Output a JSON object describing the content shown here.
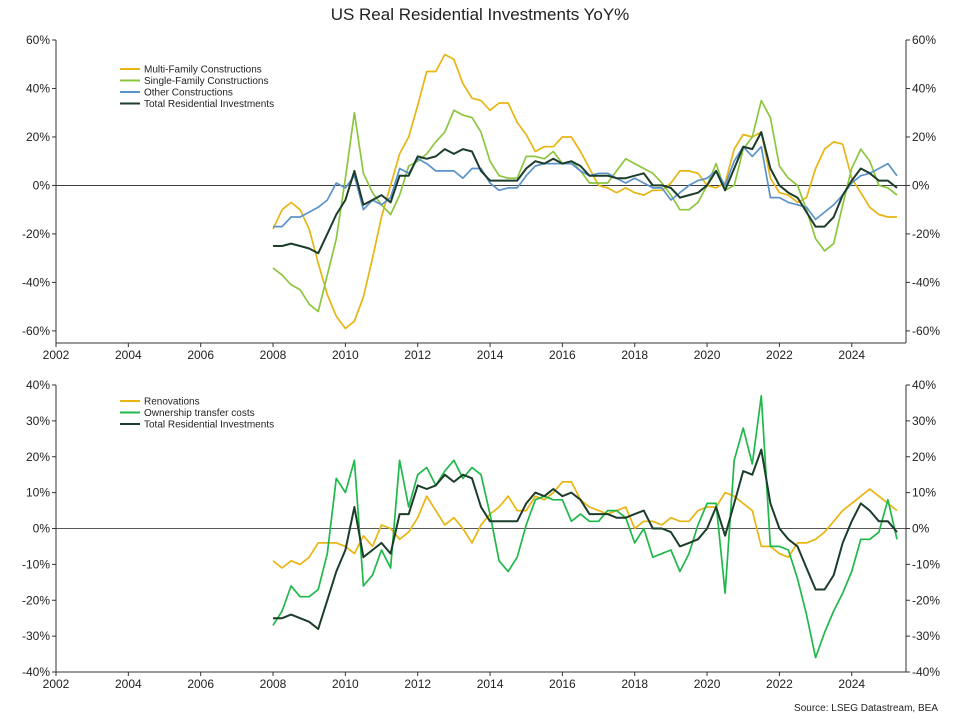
{
  "title": "US Real Residential Investments YoY%",
  "source": "Source: LSEG Datastream, BEA",
  "chart_data": [
    {
      "type": "line",
      "x_ticks": [
        "2002",
        "2004",
        "2006",
        "2008",
        "2010",
        "2012",
        "2014",
        "2016",
        "2018",
        "2020",
        "2022",
        "2024"
      ],
      "xlim": [
        2002,
        2025.5
      ],
      "ylim": [
        -65,
        60
      ],
      "y_ticks": [
        -60,
        -40,
        -20,
        0,
        20,
        40,
        60
      ],
      "y_tick_labels": [
        "-60%",
        "-40%",
        "-20%",
        "0%",
        "20%",
        "40%",
        "60%"
      ],
      "legend_position": "top-left",
      "x": [
        2008.0,
        2008.25,
        2008.5,
        2008.75,
        2009.0,
        2009.25,
        2009.5,
        2009.75,
        2010.0,
        2010.25,
        2010.5,
        2010.75,
        2011.0,
        2011.25,
        2011.5,
        2011.75,
        2012.0,
        2012.25,
        2012.5,
        2012.75,
        2013.0,
        2013.25,
        2013.5,
        2013.75,
        2014.0,
        2014.25,
        2014.5,
        2014.75,
        2015.0,
        2015.25,
        2015.5,
        2015.75,
        2016.0,
        2016.25,
        2016.5,
        2016.75,
        2017.0,
        2017.25,
        2017.5,
        2017.75,
        2018.0,
        2018.25,
        2018.5,
        2018.75,
        2019.0,
        2019.25,
        2019.5,
        2019.75,
        2020.0,
        2020.25,
        2020.5,
        2020.75,
        2021.0,
        2021.25,
        2021.5,
        2021.75,
        2022.0,
        2022.25,
        2022.5,
        2022.75,
        2023.0,
        2023.25,
        2023.5,
        2023.75,
        2024.0,
        2024.25,
        2024.5,
        2024.75,
        2025.0,
        2025.25
      ],
      "series": [
        {
          "name": "Multi-Family Constructions",
          "color": "#e8b513",
          "values": [
            -18,
            -10,
            -7,
            -10,
            -18,
            -32,
            -45,
            -54,
            -59,
            -56,
            -46,
            -30,
            -13,
            0,
            13,
            20,
            33,
            47,
            47,
            54,
            52,
            42,
            36,
            35,
            31,
            34,
            34,
            26,
            21,
            14,
            16,
            16,
            20,
            20,
            14,
            7,
            0,
            -1,
            -3,
            -1,
            -3,
            -4,
            -2,
            -2,
            1,
            6,
            6,
            5,
            0,
            -1,
            1,
            15,
            21,
            20,
            22,
            3,
            -3,
            -4,
            -7,
            -5,
            7,
            15,
            18,
            17,
            3,
            -3,
            -9,
            -12,
            -13,
            -13
          ]
        },
        {
          "name": "Single-Family Constructions",
          "color": "#8cc63e",
          "values": [
            -34,
            -37,
            -41,
            -43,
            -49,
            -52,
            -37,
            -22,
            3,
            30,
            5,
            -3,
            -8,
            -12,
            -4,
            8,
            10,
            13,
            18,
            22,
            31,
            29,
            28,
            22,
            10,
            4,
            3,
            3,
            12,
            12,
            11,
            14,
            9,
            10,
            6,
            1,
            1,
            1,
            6,
            11,
            9,
            7,
            5,
            1,
            -4,
            -10,
            -10,
            -7,
            0,
            9,
            -2,
            0,
            15,
            20,
            35,
            28,
            8,
            3,
            0,
            -10,
            -22,
            -27,
            -24,
            -8,
            7,
            15,
            10,
            0,
            -1,
            -4
          ]
        },
        {
          "name": "Other Constructions",
          "color": "#5b93c9",
          "values": [
            -17,
            -17,
            -13,
            -13,
            -11,
            -9,
            -6,
            1,
            -1,
            4,
            -10,
            -6,
            -8,
            -5,
            7,
            5,
            11,
            9,
            6,
            6,
            6,
            3,
            7,
            7,
            1,
            -2,
            -1,
            -1,
            4,
            8,
            9,
            9,
            9,
            9,
            6,
            4,
            5,
            5,
            3,
            1,
            3,
            1,
            -1,
            -1,
            -6,
            -3,
            0,
            2,
            3,
            6,
            0,
            10,
            16,
            12,
            16,
            -5,
            -5,
            -7,
            -8,
            -9,
            -14,
            -11,
            -8,
            -4,
            1,
            4,
            5,
            7,
            9,
            4
          ]
        },
        {
          "name": "Total Residential Investments",
          "color": "#1b3d2a",
          "values": [
            -25,
            -25,
            -24,
            -25,
            -26,
            -28,
            -20,
            -12,
            -6,
            6,
            -8,
            -6,
            -4,
            -7,
            4,
            4,
            12,
            11,
            12,
            15,
            13,
            15,
            14,
            6,
            2,
            2,
            2,
            2,
            7,
            10,
            9,
            11,
            9,
            10,
            8,
            4,
            4,
            4,
            3,
            3,
            4,
            5,
            0,
            0,
            -1,
            -5,
            -4,
            -3,
            0,
            6,
            -2,
            7,
            16,
            15,
            22,
            7,
            0,
            -3,
            -5,
            -11,
            -17,
            -17,
            -13,
            -4,
            2,
            7,
            5,
            2,
            2,
            -1
          ]
        }
      ]
    },
    {
      "type": "line",
      "x_ticks": [
        "2002",
        "2004",
        "2006",
        "2008",
        "2010",
        "2012",
        "2014",
        "2016",
        "2018",
        "2020",
        "2022",
        "2024"
      ],
      "xlim": [
        2002,
        2025.5
      ],
      "ylim": [
        -40,
        40
      ],
      "y_ticks": [
        -40,
        -30,
        -20,
        -10,
        0,
        10,
        20,
        30,
        40
      ],
      "y_tick_labels": [
        "-40%",
        "-30%",
        "-20%",
        "-10%",
        "0%",
        "10%",
        "20%",
        "30%",
        "40%"
      ],
      "legend_position": "top-left",
      "x": [
        2008.0,
        2008.25,
        2008.5,
        2008.75,
        2009.0,
        2009.25,
        2009.5,
        2009.75,
        2010.0,
        2010.25,
        2010.5,
        2010.75,
        2011.0,
        2011.25,
        2011.5,
        2011.75,
        2012.0,
        2012.25,
        2012.5,
        2012.75,
        2013.0,
        2013.25,
        2013.5,
        2013.75,
        2014.0,
        2014.25,
        2014.5,
        2014.75,
        2015.0,
        2015.25,
        2015.5,
        2015.75,
        2016.0,
        2016.25,
        2016.5,
        2016.75,
        2017.0,
        2017.25,
        2017.5,
        2017.75,
        2018.0,
        2018.25,
        2018.5,
        2018.75,
        2019.0,
        2019.25,
        2019.5,
        2019.75,
        2020.0,
        2020.25,
        2020.5,
        2020.75,
        2021.0,
        2021.25,
        2021.5,
        2021.75,
        2022.0,
        2022.25,
        2022.5,
        2022.75,
        2023.0,
        2023.25,
        2023.5,
        2023.75,
        2024.0,
        2024.25,
        2024.5,
        2024.75,
        2025.0,
        2025.25
      ],
      "series": [
        {
          "name": "Renovations",
          "color": "#e8b513",
          "values": [
            -9,
            -11,
            -9,
            -10,
            -8,
            -4,
            -4,
            -4,
            -5,
            -7,
            -2,
            -5,
            1,
            0,
            -3,
            -1,
            3,
            9,
            5,
            1,
            3,
            0,
            -4,
            1,
            4,
            6,
            9,
            5,
            5,
            9,
            8,
            10,
            13,
            13,
            8,
            6,
            5,
            4,
            5,
            6,
            0,
            2,
            2,
            1,
            3,
            2,
            2,
            5,
            6,
            6,
            10,
            9,
            7,
            5,
            -5,
            -5,
            -7,
            -8,
            -4,
            -4,
            -3,
            -1,
            2,
            5,
            7,
            9,
            11,
            9,
            7,
            5
          ]
        },
        {
          "name": "Ownership transfer costs",
          "color": "#1fb84a",
          "values": [
            -27,
            -23,
            -16,
            -19,
            -19,
            -17,
            -7,
            14,
            10,
            19,
            -16,
            -13,
            -6,
            -11,
            19,
            6,
            15,
            17,
            12,
            16,
            19,
            14,
            17,
            15,
            4,
            -9,
            -12,
            -8,
            1,
            8,
            9,
            8,
            8,
            2,
            4,
            2,
            2,
            5,
            5,
            3,
            -4,
            0,
            -8,
            -7,
            -6,
            -12,
            -7,
            1,
            7,
            7,
            -18,
            19,
            28,
            18,
            37,
            -5,
            -5,
            -6,
            -14,
            -24,
            -36,
            -29,
            -23,
            -18,
            -12,
            -3,
            -3,
            -1,
            8,
            -3
          ]
        },
        {
          "name": "Total Residential Investments",
          "color": "#1b3d2a",
          "values": [
            -25,
            -25,
            -24,
            -25,
            -26,
            -28,
            -20,
            -12,
            -6,
            6,
            -8,
            -6,
            -4,
            -7,
            4,
            4,
            12,
            11,
            12,
            15,
            13,
            15,
            14,
            6,
            2,
            2,
            2,
            2,
            7,
            10,
            9,
            11,
            9,
            10,
            8,
            4,
            4,
            4,
            3,
            3,
            4,
            5,
            0,
            0,
            -1,
            -5,
            -4,
            -3,
            0,
            6,
            -2,
            7,
            16,
            15,
            22,
            7,
            0,
            -3,
            -5,
            -11,
            -17,
            -17,
            -13,
            -4,
            2,
            7,
            5,
            2,
            2,
            -1
          ]
        }
      ]
    }
  ]
}
